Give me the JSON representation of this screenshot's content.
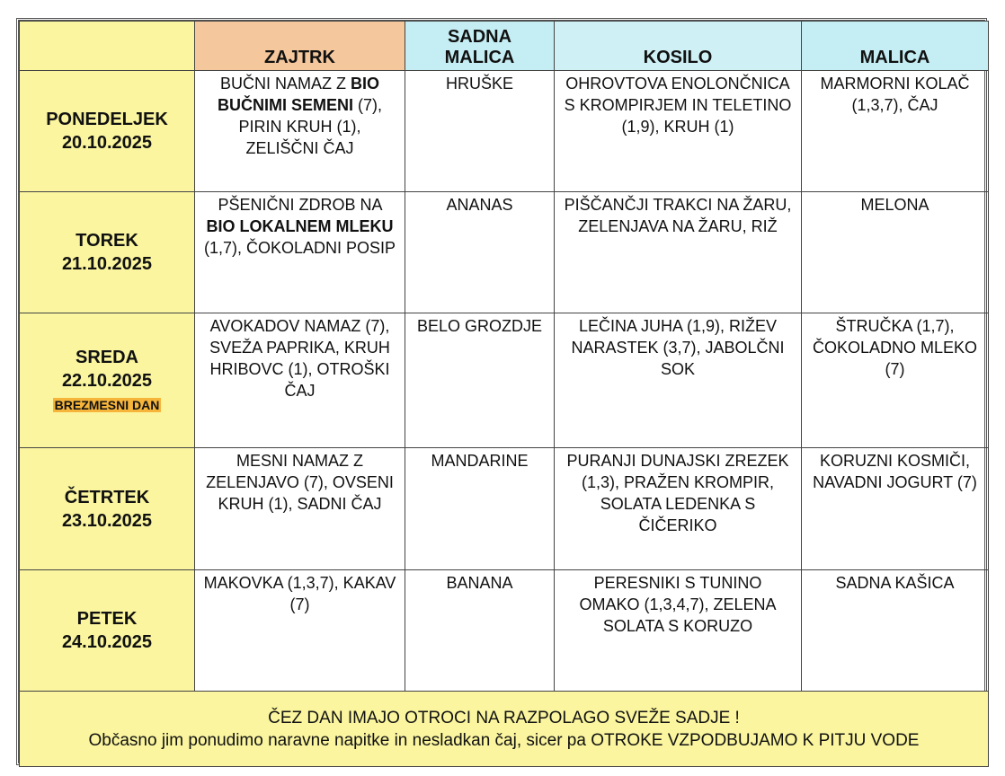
{
  "table": {
    "header": [
      "ZAJTRK",
      "SADNA MALICA",
      "KOSILO",
      "MALICA"
    ],
    "rows": [
      {
        "day": "PONEDELJEK",
        "date": "20.10.2025",
        "cells": [
          {
            "parts": [
              "BUČNI NAMAZ Z",
              "BIO BUČNIMI SEMENI",
              "(7), PIRIN KRUH (1), ZELIŠČNI ČAJ"
            ]
          },
          {
            "text": "HRUŠKE"
          },
          {
            "text": "OHROVTOVA ENOLONČNICA S KROMPIRJEM IN TELETINO (1,9), KRUH (1)"
          },
          {
            "text": "MARMORNI KOLAČ (1,3,7), ČAJ"
          }
        ]
      },
      {
        "day": "TOREK",
        "date": "21.10.2025",
        "cells": [
          {
            "parts": [
              "PŠENIČNI ZDROB NA",
              "BIO LOKALNEM MLEKU",
              "(1,7), ČOKOLADNI POSIP"
            ]
          },
          {
            "text": "ANANAS"
          },
          {
            "text": "PIŠČANČJI TRAKCI NA ŽARU, ZELENJAVA NA ŽARU, RIŽ"
          },
          {
            "text": "MELONA"
          }
        ]
      },
      {
        "day": "SREDA",
        "date": "22.10.2025",
        "note": "BREZMESNI DAN",
        "cells": [
          {
            "text": "AVOKADOV NAMAZ (7), SVEŽA PAPRIKA, KRUH HRIBOVC (1), OTROŠKI ČAJ"
          },
          {
            "text": "BELO GROZDJE"
          },
          {
            "text": "LEČINA JUHA (1,9), RIŽEV NARASTEK (3,7), JABOLČNI SOK"
          },
          {
            "text": "ŠTRUČKA (1,7), ČOKOLADNO MLEKO (7)"
          }
        ]
      },
      {
        "day": "ČETRTEK",
        "date": "23.10.2025",
        "cells": [
          {
            "text": "MESNI NAMAZ Z ZELENJAVO (7), OVSENI KRUH (1), SADNI ČAJ"
          },
          {
            "text": "MANDARINE"
          },
          {
            "text": "PURANJI DUNAJSKI ZREZEK (1,3), PRAŽEN KROMPIR, SOLATA LEDENKA S ČIČERIKO"
          },
          {
            "text": "KORUZNI KOSMIČI, NAVADNI JOGURT (7)"
          }
        ]
      },
      {
        "day": "PETEK",
        "date": "24.10.2025",
        "cells": [
          {
            "text": "MAKOVKA (1,3,7), KAKAV (7)"
          },
          {
            "text": "BANANA"
          },
          {
            "text": "PERESNIKI S TUNINO OMAKO (1,3,4,7), ZELENA SOLATA S KORUZO"
          },
          {
            "text": "SADNA KAŠICA"
          }
        ]
      }
    ],
    "footer": [
      "ČEZ DAN IMAJO OTROCI NA RAZPOLAGO SVEŽE SADJE !",
      "Občasno jim ponudimo naravne napitke in nesladkan čaj, sicer pa OTROKE VZPODBUJAMO K PITJU VODE"
    ]
  }
}
